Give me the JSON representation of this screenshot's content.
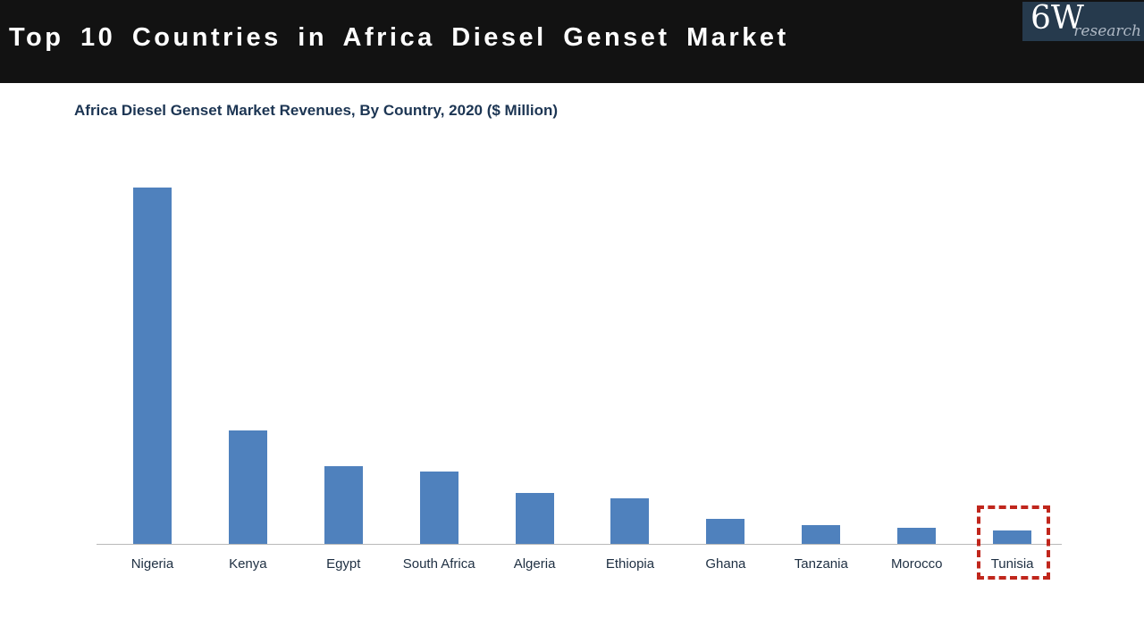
{
  "header": {
    "title": "Top 10 Countries in Africa Diesel Genset Market",
    "background_color": "#121212",
    "title_color": "#ffffff"
  },
  "logo": {
    "main_text": "6W",
    "sub_text": "research",
    "background_color": "#263a4d",
    "main_color": "#ffffff",
    "sub_color": "#aeb8c4"
  },
  "chart_data": {
    "type": "bar",
    "title": "Africa Diesel Genset Market Revenues, By Country, 2020 ($ Million)",
    "categories": [
      "Nigeria",
      "Kenya",
      "Egypt",
      "South Africa",
      "Algeria",
      "Ethiopia",
      "Ghana",
      "Tanzania",
      "Morocco",
      "Tunisia"
    ],
    "values": [
      399,
      127,
      87,
      81,
      57,
      51,
      28,
      21,
      18,
      15
    ],
    "values_note": "no y-axis scale shown on chart; values are relative bar heights (screen px), Nigeria tallest",
    "xlabel": "",
    "ylabel": "",
    "y_axis_visible": false,
    "gridlines": false,
    "legend": "none",
    "bar_color": "#4f81bd",
    "axis_line_color": "#b9b9b9",
    "label_color": "#1e2f42",
    "highlight": {
      "category": "Tunisia",
      "style": "red dashed rectangle around bar and label",
      "color": "#c0261c"
    }
  }
}
